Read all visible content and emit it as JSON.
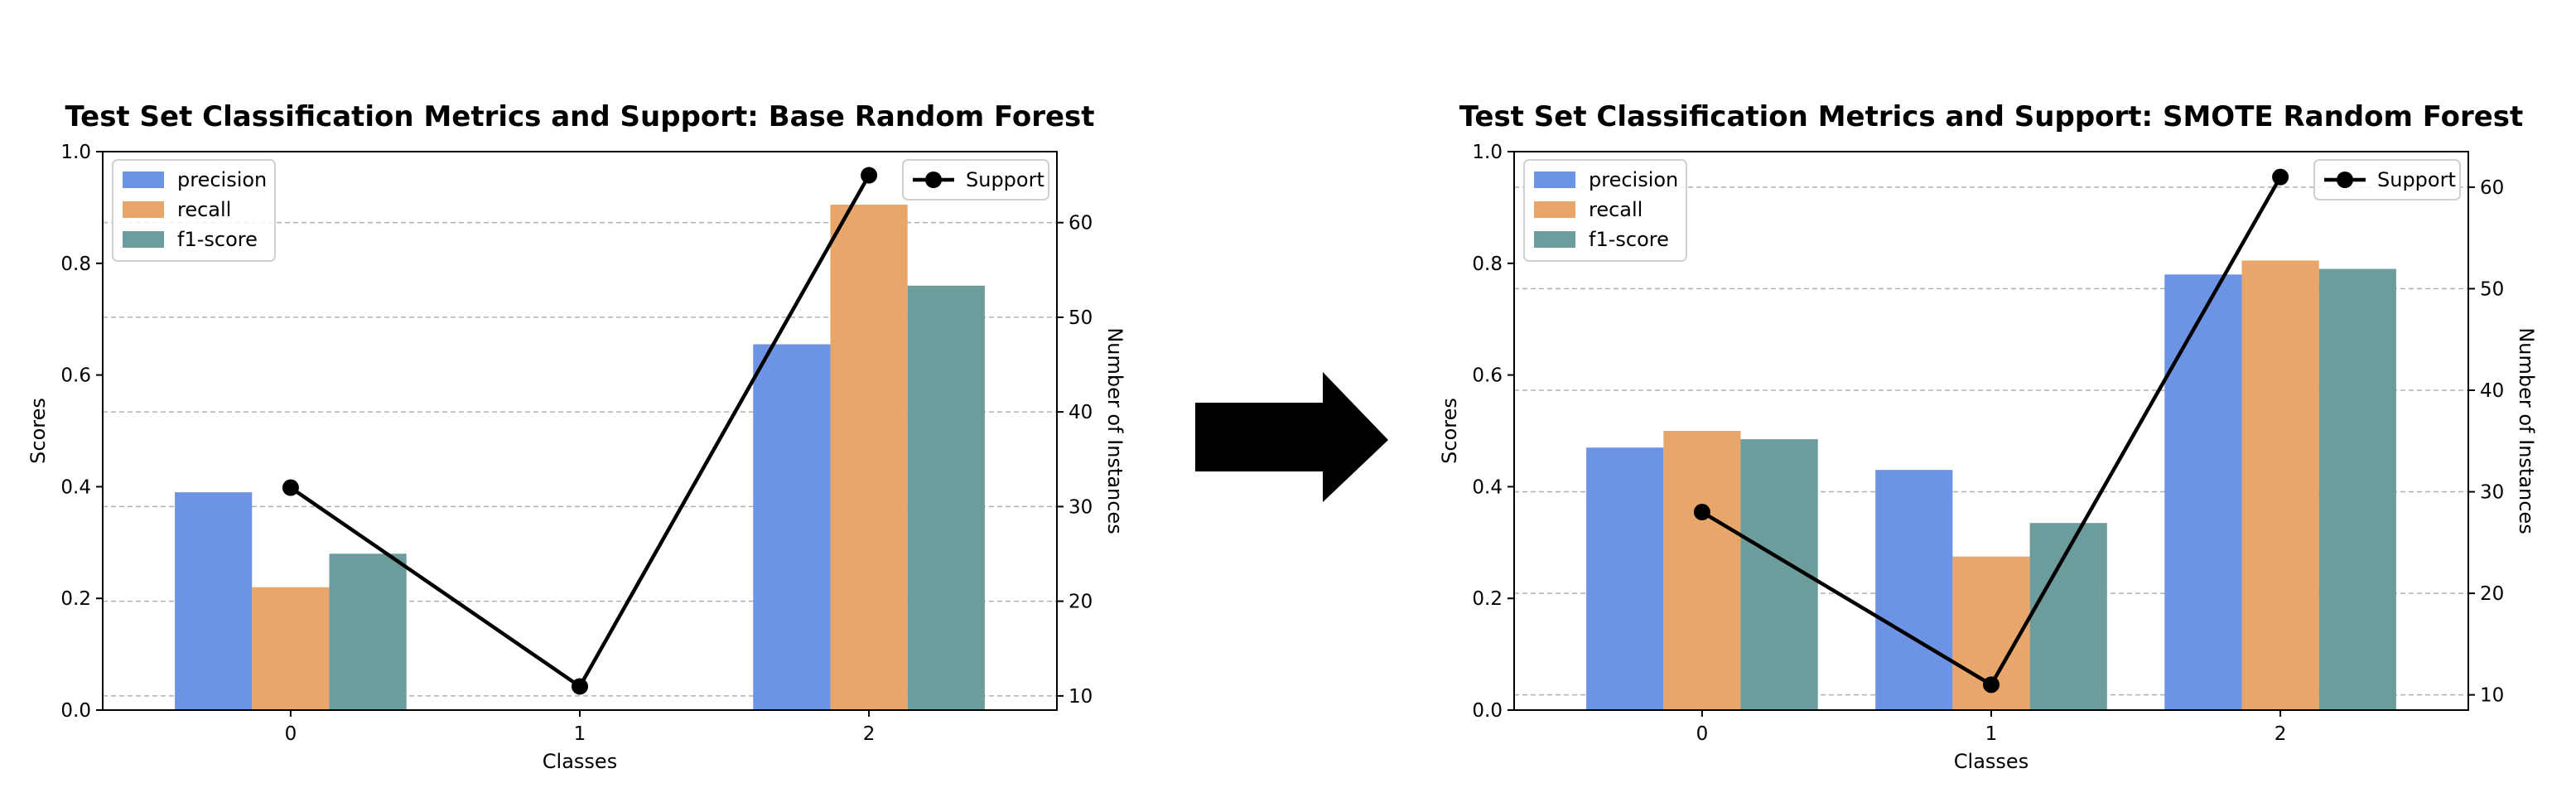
{
  "colors": {
    "precision": "#6d93e4",
    "recall": "#e8a66a",
    "f1": "#6d9c9c",
    "support": "#000000",
    "grid": "#b0b0b0",
    "arrow": "#000000"
  },
  "chart_data": [
    {
      "type": "bar",
      "title": "Test Set Classification Metrics and Support: Base Random Forest",
      "xlabel": "Classes",
      "ylabel": "Scores",
      "y2label": "Number of Instances",
      "categories": [
        "0",
        "1",
        "2"
      ],
      "ylim": [
        0,
        1.0
      ],
      "yticks": [
        "0.0",
        "0.2",
        "0.4",
        "0.6",
        "0.8",
        "1.0"
      ],
      "y2lim": [
        8.5,
        67.5
      ],
      "y2ticks": [
        "10",
        "20",
        "30",
        "40",
        "50",
        "60"
      ],
      "grid": "y2 dashed",
      "legend_left": "upper-left",
      "legend_right": "upper-right",
      "series": [
        {
          "name": "precision",
          "values": [
            0.39,
            0.0,
            0.655
          ]
        },
        {
          "name": "recall",
          "values": [
            0.22,
            0.0,
            0.905
          ]
        },
        {
          "name": "f1-score",
          "values": [
            0.28,
            0.0,
            0.76
          ]
        }
      ],
      "line_series": {
        "name": "Support",
        "values": [
          32,
          11,
          65
        ]
      }
    },
    {
      "type": "bar",
      "title": "Test Set Classification Metrics and Support: SMOTE Random Forest",
      "xlabel": "Classes",
      "ylabel": "Scores",
      "y2label": "Number of Instances",
      "categories": [
        "0",
        "1",
        "2"
      ],
      "ylim": [
        0,
        1.0
      ],
      "yticks": [
        "0.0",
        "0.2",
        "0.4",
        "0.6",
        "0.8",
        "1.0"
      ],
      "y2lim": [
        8.5,
        63.5
      ],
      "y2ticks": [
        "10",
        "20",
        "30",
        "40",
        "50",
        "60"
      ],
      "grid": "y2 dashed",
      "legend_left": "upper-left",
      "legend_right": "upper-right",
      "series": [
        {
          "name": "precision",
          "values": [
            0.47,
            0.43,
            0.78
          ]
        },
        {
          "name": "recall",
          "values": [
            0.5,
            0.275,
            0.805
          ]
        },
        {
          "name": "f1-score",
          "values": [
            0.485,
            0.335,
            0.79
          ]
        }
      ],
      "line_series": {
        "name": "Support",
        "values": [
          28,
          11,
          61
        ]
      }
    }
  ]
}
